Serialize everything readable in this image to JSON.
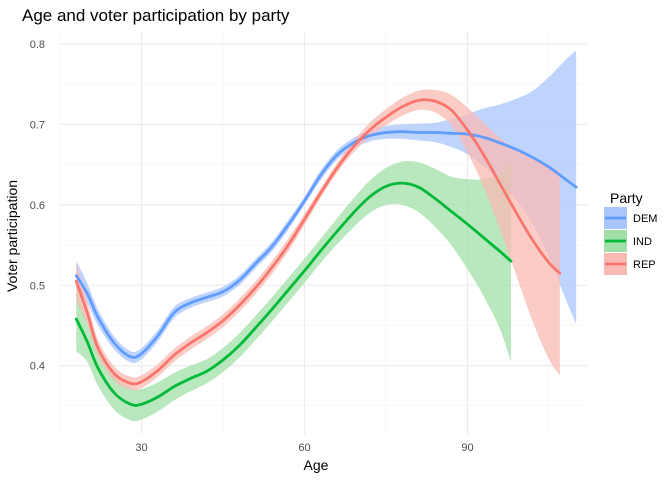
{
  "chart_data": {
    "type": "line",
    "title": "Age and voter participation by party",
    "xlabel": "Age",
    "ylabel": "Voter participation",
    "xlim": [
      15,
      112
    ],
    "ylim": [
      0.315,
      0.815
    ],
    "x_ticks": [
      30,
      60,
      90
    ],
    "x_tick_labels": [
      "30",
      "60",
      "90"
    ],
    "y_ticks": [
      0.4,
      0.5,
      0.6,
      0.7,
      0.8
    ],
    "y_tick_labels": [
      "0.4",
      "0.5",
      "0.6",
      "0.7",
      "0.8"
    ],
    "grid": true,
    "legend": {
      "title": "Party",
      "position": "right"
    },
    "series": [
      {
        "name": "DEM",
        "color": "#619CFF",
        "band_color": "#a9c6fc",
        "x": [
          18,
          20,
          22,
          25,
          28,
          30,
          33,
          36,
          39,
          42,
          45,
          48,
          51,
          54,
          57,
          60,
          63,
          66,
          69,
          72,
          75,
          78,
          81,
          84,
          87,
          90,
          93,
          96,
          99,
          102,
          105,
          108,
          110
        ],
        "y": [
          0.512,
          0.49,
          0.46,
          0.428,
          0.411,
          0.415,
          0.437,
          0.466,
          0.478,
          0.485,
          0.492,
          0.506,
          0.527,
          0.548,
          0.575,
          0.605,
          0.637,
          0.662,
          0.677,
          0.686,
          0.69,
          0.691,
          0.69,
          0.69,
          0.689,
          0.688,
          0.684,
          0.677,
          0.669,
          0.659,
          0.647,
          0.632,
          0.622
        ],
        "lower": [
          0.495,
          0.478,
          0.45,
          0.42,
          0.404,
          0.408,
          0.43,
          0.459,
          0.472,
          0.479,
          0.486,
          0.5,
          0.521,
          0.542,
          0.569,
          0.6,
          0.631,
          0.656,
          0.671,
          0.679,
          0.682,
          0.682,
          0.68,
          0.678,
          0.672,
          0.663,
          0.648,
          0.629,
          0.606,
          0.576,
          0.535,
          0.484,
          0.452
        ],
        "upper": [
          0.53,
          0.503,
          0.47,
          0.436,
          0.418,
          0.422,
          0.444,
          0.473,
          0.484,
          0.491,
          0.498,
          0.512,
          0.533,
          0.554,
          0.581,
          0.61,
          0.643,
          0.668,
          0.683,
          0.693,
          0.698,
          0.7,
          0.701,
          0.702,
          0.707,
          0.713,
          0.72,
          0.725,
          0.732,
          0.742,
          0.759,
          0.78,
          0.792
        ]
      },
      {
        "name": "IND",
        "color": "#00BA38",
        "band_color": "#a2dfa8",
        "x": [
          18,
          20,
          22,
          25,
          28,
          30,
          33,
          36,
          39,
          42,
          45,
          48,
          51,
          54,
          57,
          60,
          63,
          66,
          69,
          72,
          75,
          78,
          81,
          84,
          87,
          90,
          93,
          96,
          98
        ],
        "y": [
          0.458,
          0.43,
          0.397,
          0.366,
          0.352,
          0.352,
          0.361,
          0.374,
          0.384,
          0.393,
          0.407,
          0.425,
          0.447,
          0.47,
          0.494,
          0.518,
          0.543,
          0.567,
          0.59,
          0.61,
          0.623,
          0.627,
          0.622,
          0.608,
          0.592,
          0.576,
          0.559,
          0.542,
          0.53
        ],
        "lower": [
          0.418,
          0.405,
          0.375,
          0.345,
          0.332,
          0.333,
          0.343,
          0.357,
          0.368,
          0.378,
          0.392,
          0.41,
          0.432,
          0.455,
          0.479,
          0.503,
          0.528,
          0.551,
          0.572,
          0.59,
          0.6,
          0.6,
          0.591,
          0.573,
          0.55,
          0.52,
          0.486,
          0.445,
          0.405
        ],
        "upper": [
          0.498,
          0.456,
          0.42,
          0.388,
          0.373,
          0.371,
          0.379,
          0.391,
          0.4,
          0.408,
          0.422,
          0.44,
          0.462,
          0.485,
          0.509,
          0.533,
          0.558,
          0.583,
          0.608,
          0.63,
          0.646,
          0.654,
          0.653,
          0.645,
          0.635,
          0.632,
          0.632,
          0.64,
          0.653
        ]
      },
      {
        "name": "REP",
        "color": "#F8766D",
        "band_color": "#f9bab3",
        "x": [
          18,
          20,
          22,
          25,
          28,
          30,
          33,
          36,
          39,
          42,
          45,
          48,
          51,
          54,
          57,
          60,
          63,
          66,
          69,
          72,
          75,
          78,
          81,
          84,
          87,
          90,
          93,
          96,
          99,
          102,
          105,
          107
        ],
        "y": [
          0.505,
          0.466,
          0.422,
          0.39,
          0.378,
          0.38,
          0.394,
          0.413,
          0.428,
          0.441,
          0.456,
          0.475,
          0.497,
          0.522,
          0.55,
          0.582,
          0.615,
          0.646,
          0.672,
          0.693,
          0.709,
          0.722,
          0.73,
          0.729,
          0.718,
          0.693,
          0.662,
          0.626,
          0.59,
          0.556,
          0.528,
          0.515
        ],
        "lower": [
          0.48,
          0.452,
          0.412,
          0.381,
          0.37,
          0.372,
          0.386,
          0.405,
          0.42,
          0.433,
          0.448,
          0.467,
          0.489,
          0.514,
          0.542,
          0.575,
          0.609,
          0.64,
          0.665,
          0.684,
          0.699,
          0.711,
          0.718,
          0.715,
          0.699,
          0.665,
          0.622,
          0.569,
          0.512,
          0.455,
          0.408,
          0.388
        ],
        "upper": [
          0.53,
          0.48,
          0.432,
          0.399,
          0.386,
          0.388,
          0.402,
          0.421,
          0.436,
          0.449,
          0.464,
          0.483,
          0.505,
          0.53,
          0.558,
          0.589,
          0.621,
          0.652,
          0.679,
          0.702,
          0.719,
          0.733,
          0.742,
          0.743,
          0.737,
          0.721,
          0.702,
          0.683,
          0.668,
          0.657,
          0.648,
          0.642
        ]
      }
    ]
  }
}
